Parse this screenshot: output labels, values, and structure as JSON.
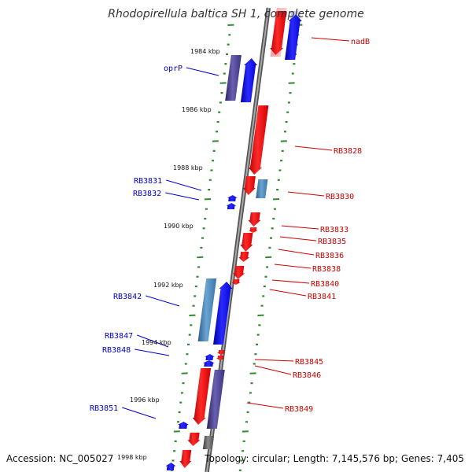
{
  "title": "Rhodopirellula baltica SH 1, complete genome",
  "footer": {
    "accession": "Accession: NC_005027",
    "topology": "Topology: circular; Length: 7,145,576 bp; Genes: 7,405"
  },
  "colors": {
    "backbone": "#7f7f7f",
    "tick": "#2e8b2e",
    "forward_label": "#0000cc",
    "reverse_label": "#cc0000",
    "gene_red": "#ff0000",
    "gene_blue": "#0000ff",
    "gene_steel": "#4682b4",
    "gene_slate": "#483d8b",
    "gene_grey": "#606060"
  },
  "kbp_markers": [
    "1984 kbp",
    "1986 kbp",
    "1988 kbp",
    "1990 kbp",
    "1992 kbp",
    "1994 kbp",
    "1996 kbp",
    "1998 kbp"
  ],
  "gene_labels": [
    {
      "id": "nadB",
      "text": "nadB",
      "side": "right"
    },
    {
      "id": "oprP",
      "text": "oprP",
      "side": "left"
    },
    {
      "id": "RB3828",
      "text": "RB3828",
      "side": "right"
    },
    {
      "id": "RB3831",
      "text": "RB3831",
      "side": "left"
    },
    {
      "id": "RB3832",
      "text": "RB3832",
      "side": "left"
    },
    {
      "id": "RB3830",
      "text": "RB3830",
      "side": "right"
    },
    {
      "id": "RB3833",
      "text": "RB3833",
      "side": "right"
    },
    {
      "id": "RB3835",
      "text": "RB3835",
      "side": "right"
    },
    {
      "id": "RB3836",
      "text": "RB3836",
      "side": "right"
    },
    {
      "id": "RB3838",
      "text": "RB3838",
      "side": "right"
    },
    {
      "id": "RB3840",
      "text": "RB3840",
      "side": "right"
    },
    {
      "id": "RB3841",
      "text": "RB3841",
      "side": "right"
    },
    {
      "id": "RB3842",
      "text": "RB3842",
      "side": "left"
    },
    {
      "id": "RB3847",
      "text": "RB3847",
      "side": "left"
    },
    {
      "id": "RB3848",
      "text": "RB3848",
      "side": "left"
    },
    {
      "id": "RB3845",
      "text": "RB3845",
      "side": "right"
    },
    {
      "id": "RB3846",
      "text": "RB3846",
      "side": "right"
    },
    {
      "id": "RB3849",
      "text": "RB3849",
      "side": "right"
    },
    {
      "id": "RB3851",
      "text": "RB3851",
      "side": "left"
    }
  ]
}
